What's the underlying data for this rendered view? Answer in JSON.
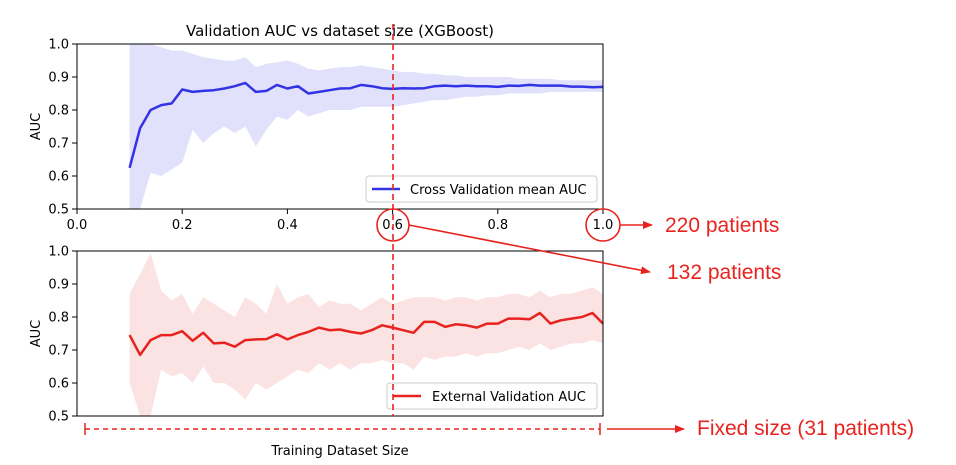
{
  "chart_data": [
    {
      "type": "line",
      "title": "Validation AUC vs dataset size (XGBoost)",
      "ylabel": "AUC",
      "xlim": [
        0.0,
        1.0
      ],
      "ylim": [
        0.5,
        1.0
      ],
      "xticks": [
        "0.0",
        "0.2",
        "0.4",
        "0.6",
        "0.8",
        "1.0"
      ],
      "yticks": [
        "0.5",
        "0.6",
        "0.7",
        "0.8",
        "0.9",
        "1.0"
      ],
      "legend_position": "lower-right",
      "series": [
        {
          "name": "Cross Validation mean AUC",
          "color": "#3333e6",
          "band_color": "#dcdcfb",
          "x": [
            0.1,
            0.12,
            0.14,
            0.16,
            0.18,
            0.2,
            0.22,
            0.24,
            0.26,
            0.28,
            0.3,
            0.32,
            0.34,
            0.36,
            0.38,
            0.4,
            0.42,
            0.44,
            0.46,
            0.48,
            0.5,
            0.52,
            0.54,
            0.56,
            0.58,
            0.6,
            0.62,
            0.64,
            0.66,
            0.68,
            0.7,
            0.72,
            0.74,
            0.76,
            0.78,
            0.8,
            0.82,
            0.84,
            0.86,
            0.88,
            0.9,
            0.92,
            0.94,
            0.96,
            0.98,
            1.0
          ],
          "values": [
            0.625,
            0.745,
            0.8,
            0.815,
            0.82,
            0.862,
            0.855,
            0.858,
            0.86,
            0.865,
            0.872,
            0.882,
            0.855,
            0.858,
            0.876,
            0.865,
            0.872,
            0.85,
            0.855,
            0.86,
            0.865,
            0.866,
            0.876,
            0.872,
            0.866,
            0.864,
            0.866,
            0.865,
            0.866,
            0.872,
            0.874,
            0.872,
            0.874,
            0.872,
            0.872,
            0.87,
            0.874,
            0.873,
            0.876,
            0.874,
            0.874,
            0.874,
            0.871,
            0.871,
            0.869,
            0.87
          ],
          "upper": [
            1.0,
            1.0,
            1.0,
            0.99,
            0.98,
            0.98,
            0.97,
            0.96,
            0.955,
            0.95,
            0.95,
            0.96,
            0.93,
            0.94,
            0.945,
            0.95,
            0.94,
            0.925,
            0.92,
            0.925,
            0.93,
            0.93,
            0.935,
            0.93,
            0.925,
            0.92,
            0.915,
            0.915,
            0.91,
            0.91,
            0.905,
            0.905,
            0.9,
            0.9,
            0.9,
            0.9,
            0.9,
            0.895,
            0.895,
            0.895,
            0.895,
            0.89,
            0.89,
            0.89,
            0.89,
            0.89
          ],
          "lower": [
            0.5,
            0.5,
            0.61,
            0.6,
            0.62,
            0.64,
            0.74,
            0.7,
            0.73,
            0.75,
            0.73,
            0.75,
            0.69,
            0.74,
            0.78,
            0.77,
            0.8,
            0.78,
            0.79,
            0.8,
            0.8,
            0.8,
            0.81,
            0.81,
            0.81,
            0.81,
            0.815,
            0.82,
            0.825,
            0.83,
            0.83,
            0.835,
            0.84,
            0.84,
            0.845,
            0.845,
            0.85,
            0.85,
            0.85,
            0.85,
            0.855,
            0.855,
            0.855,
            0.855,
            0.855,
            0.855
          ]
        }
      ]
    },
    {
      "type": "line",
      "xlabel": "Training Dataset Size",
      "ylabel": "AUC",
      "xlim": [
        0.0,
        1.0
      ],
      "ylim": [
        0.5,
        1.0
      ],
      "yticks": [
        "0.5",
        "0.6",
        "0.7",
        "0.8",
        "0.9",
        "1.0"
      ],
      "legend_position": "lower-right",
      "series": [
        {
          "name": "External Validation AUC",
          "color": "#e8231f",
          "band_color": "#fcdede",
          "x": [
            0.1,
            0.12,
            0.14,
            0.16,
            0.18,
            0.2,
            0.22,
            0.24,
            0.26,
            0.28,
            0.3,
            0.32,
            0.34,
            0.36,
            0.38,
            0.4,
            0.42,
            0.44,
            0.46,
            0.48,
            0.5,
            0.52,
            0.54,
            0.56,
            0.58,
            0.6,
            0.62,
            0.64,
            0.66,
            0.68,
            0.7,
            0.72,
            0.74,
            0.76,
            0.78,
            0.8,
            0.82,
            0.84,
            0.86,
            0.88,
            0.9,
            0.92,
            0.94,
            0.96,
            0.98,
            1.0
          ],
          "values": [
            0.745,
            0.685,
            0.73,
            0.745,
            0.745,
            0.757,
            0.728,
            0.752,
            0.72,
            0.722,
            0.71,
            0.73,
            0.732,
            0.733,
            0.748,
            0.732,
            0.745,
            0.755,
            0.768,
            0.76,
            0.762,
            0.755,
            0.75,
            0.76,
            0.775,
            0.768,
            0.76,
            0.752,
            0.785,
            0.785,
            0.77,
            0.778,
            0.775,
            0.768,
            0.78,
            0.78,
            0.795,
            0.795,
            0.793,
            0.812,
            0.78,
            0.79,
            0.795,
            0.8,
            0.812,
            0.78
          ],
          "upper": [
            0.87,
            0.93,
            0.995,
            0.88,
            0.85,
            0.87,
            0.81,
            0.86,
            0.84,
            0.82,
            0.8,
            0.86,
            0.84,
            0.81,
            0.9,
            0.84,
            0.86,
            0.87,
            0.83,
            0.85,
            0.84,
            0.84,
            0.82,
            0.84,
            0.86,
            0.84,
            0.85,
            0.86,
            0.86,
            0.86,
            0.85,
            0.86,
            0.86,
            0.85,
            0.86,
            0.86,
            0.87,
            0.87,
            0.86,
            0.88,
            0.86,
            0.87,
            0.87,
            0.88,
            0.89,
            0.87
          ],
          "lower": [
            0.6,
            0.5,
            0.5,
            0.64,
            0.62,
            0.63,
            0.6,
            0.65,
            0.6,
            0.6,
            0.58,
            0.55,
            0.6,
            0.58,
            0.6,
            0.62,
            0.64,
            0.63,
            0.66,
            0.64,
            0.66,
            0.64,
            0.66,
            0.66,
            0.67,
            0.66,
            0.66,
            0.64,
            0.68,
            0.67,
            0.68,
            0.68,
            0.69,
            0.68,
            0.69,
            0.69,
            0.7,
            0.71,
            0.7,
            0.72,
            0.7,
            0.71,
            0.72,
            0.72,
            0.73,
            0.72
          ]
        }
      ]
    }
  ],
  "annotations": {
    "label_220": "220 patients",
    "label_132": "132 patients",
    "label_fixed": "Fixed size (31 patients)",
    "marker_x": 0.6,
    "color": "#e8231f"
  }
}
